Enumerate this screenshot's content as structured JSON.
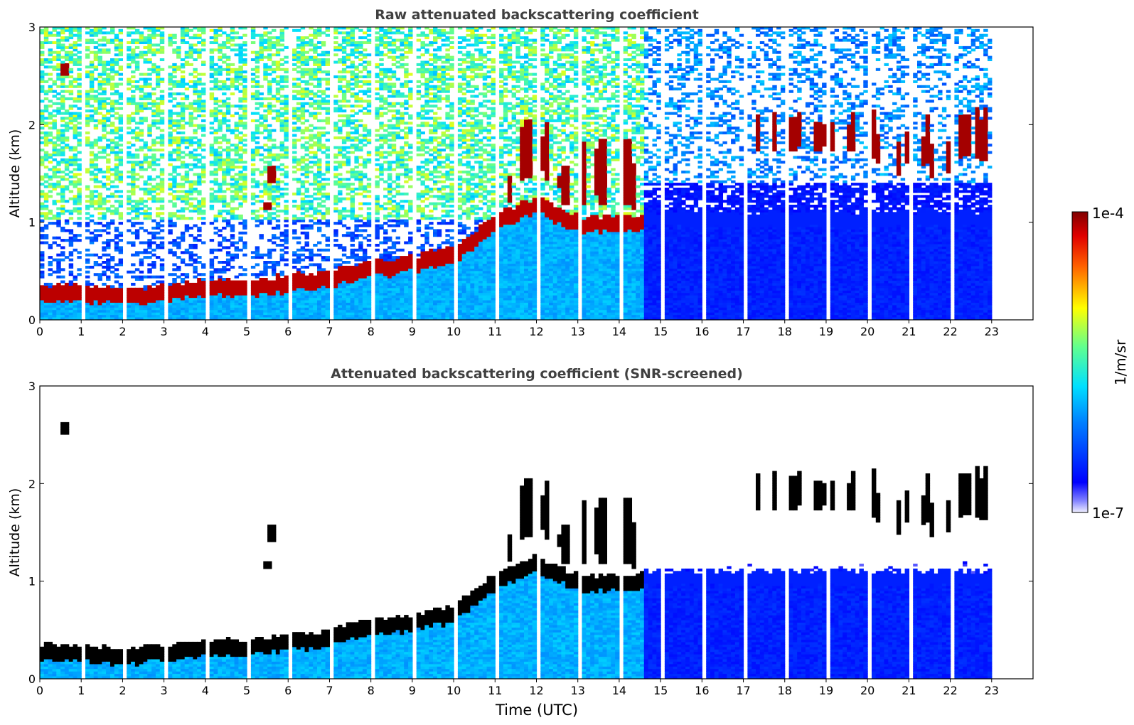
{
  "chart_data": [
    {
      "type": "heatmap",
      "title": "Raw attenuated backscattering coefficient",
      "xlabel": "",
      "ylabel": "Altitude (km)",
      "xlim": [
        0,
        24
      ],
      "ylim": [
        0,
        3
      ],
      "x_ticks": [
        "0",
        "1",
        "2",
        "3",
        "4",
        "5",
        "6",
        "7",
        "8",
        "9",
        "10",
        "11",
        "12",
        "13",
        "14",
        "15",
        "16",
        "17",
        "18",
        "19",
        "20",
        "21",
        "22",
        "23"
      ],
      "y_ticks": [
        "0",
        "1",
        "2",
        "3"
      ],
      "data_time_range": [
        0,
        23
      ],
      "grid": false,
      "features": {
        "boundary_layer_top_km": [
          [
            0,
            0.3
          ],
          [
            1,
            0.3
          ],
          [
            2,
            0.25
          ],
          [
            3,
            0.3
          ],
          [
            4,
            0.35
          ],
          [
            5,
            0.35
          ],
          [
            6,
            0.4
          ],
          [
            7,
            0.45
          ],
          [
            8,
            0.55
          ],
          [
            9,
            0.6
          ],
          [
            10,
            0.7
          ],
          [
            11,
            1.05
          ],
          [
            12,
            1.2
          ],
          [
            13,
            1.0
          ],
          [
            14,
            1.0
          ],
          [
            14.6,
            1.05
          ]
        ],
        "upper_cloud_layer_km": [
          [
            17.3,
            1.8
          ],
          [
            18,
            1.65
          ],
          [
            19,
            1.75
          ],
          [
            20,
            1.55
          ],
          [
            21,
            1.5
          ],
          [
            22,
            1.55
          ],
          [
            22.8,
            1.6
          ]
        ],
        "noise_zone": "green-yellow noise above ~1 km before 14.6 UTC; blue below 1.4 km after 14.6 UTC"
      }
    },
    {
      "type": "heatmap",
      "title": "Attenuated backscattering coefficient (SNR-screened)",
      "xlabel": "Time (UTC)",
      "ylabel": "Altitude (km)",
      "xlim": [
        0,
        24
      ],
      "ylim": [
        0,
        3
      ],
      "x_ticks": [
        "0",
        "1",
        "2",
        "3",
        "4",
        "5",
        "6",
        "7",
        "8",
        "9",
        "10",
        "11",
        "12",
        "13",
        "14",
        "15",
        "16",
        "17",
        "18",
        "19",
        "20",
        "21",
        "22",
        "23"
      ],
      "y_ticks": [
        "0",
        "1",
        "2",
        "3"
      ],
      "data_time_range": [
        0,
        23
      ],
      "grid": false
    }
  ],
  "colorbar": {
    "label": "1/m/sr",
    "max_label": "1e-4",
    "min_label": "1e-7",
    "scale": "log",
    "colormap": "jet"
  },
  "colors": {
    "low": "#0a0aff",
    "mid": "#19b4e6",
    "high": "#800000",
    "screened_core": "#000000"
  }
}
